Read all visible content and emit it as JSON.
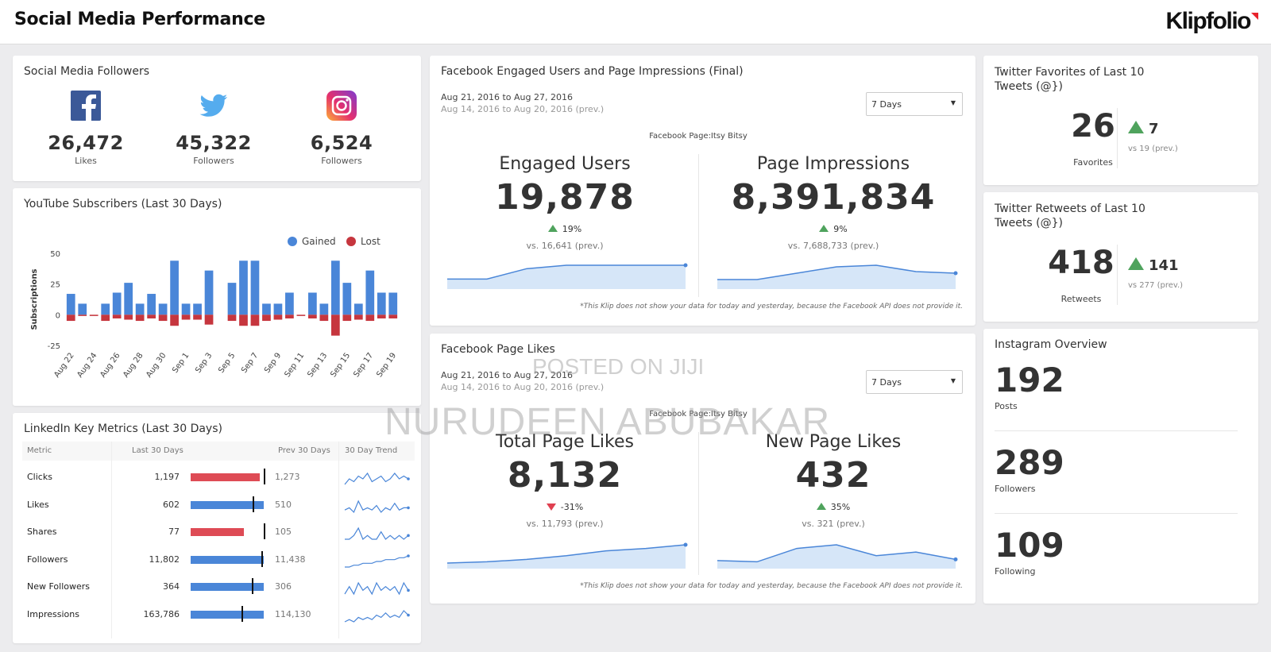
{
  "header": {
    "title": "Social Media Performance",
    "logo_text": "Klipfolio"
  },
  "followers": {
    "title": "Social Media Followers",
    "items": [
      {
        "icon": "facebook-icon",
        "value": "26,472",
        "label": "Likes",
        "color": "#3b5998"
      },
      {
        "icon": "twitter-icon",
        "value": "45,322",
        "label": "Followers",
        "color": "#55acee"
      },
      {
        "icon": "instagram-icon",
        "value": "6,524",
        "label": "Followers",
        "color": "#d6249f"
      }
    ]
  },
  "youtube": {
    "title": "YouTube Subscribers (Last 30 Days)",
    "legend_gained": "Gained",
    "legend_lost": "Lost",
    "colors": {
      "gained": "#4a86d8",
      "lost": "#c6363e"
    }
  },
  "chart_data": {
    "type": "bar",
    "title": "YouTube Subscribers (Last 30 Days)",
    "xlabel": "",
    "ylabel": "Subscriptions",
    "ylim": [
      -25,
      50
    ],
    "yticks": [
      "50",
      "25",
      "0",
      "-25"
    ],
    "tick_labels": [
      "Aug 22",
      "Aug 24",
      "Aug 26",
      "Aug 28",
      "Aug 30",
      "Sep 1",
      "Sep 3",
      "Sep 5",
      "Sep 7",
      "Sep 9",
      "Sep 11",
      "Sep 13",
      "Sep 15",
      "Sep 17",
      "Sep 19"
    ],
    "categories": [
      "Aug 22",
      "Aug 23",
      "Aug 24",
      "Aug 25",
      "Aug 26",
      "Aug 27",
      "Aug 28",
      "Aug 29",
      "Aug 30",
      "Aug 31",
      "Sep 1",
      "Sep 2",
      "Sep 3",
      "Sep 4",
      "Sep 5",
      "Sep 6",
      "Sep 7",
      "Sep 8",
      "Sep 9",
      "Sep 10",
      "Sep 11",
      "Sep 12",
      "Sep 13",
      "Sep 14",
      "Sep 15",
      "Sep 16",
      "Sep 17",
      "Sep 18",
      "Sep 19"
    ],
    "series": [
      {
        "name": "Gained",
        "values": [
          17,
          9,
          0,
          9,
          18,
          26,
          9,
          17,
          9,
          44,
          9,
          9,
          36,
          0,
          26,
          44,
          44,
          9,
          9,
          18,
          0,
          18,
          9,
          44,
          26,
          9,
          36,
          18,
          18
        ]
      },
      {
        "name": "Lost",
        "values": [
          -5,
          -1,
          -1,
          -5,
          -3,
          -4,
          -5,
          -3,
          -5,
          -9,
          -4,
          -4,
          -8,
          0,
          -5,
          -9,
          -9,
          -5,
          -4,
          -3,
          -1,
          -3,
          -5,
          -17,
          -5,
          -4,
          -5,
          -3,
          -3
        ]
      }
    ],
    "legend": "top-right",
    "grid": false
  },
  "linkedin": {
    "title": "LinkedIn Key Metrics (Last 30 Days)",
    "headers": {
      "metric": "Metric",
      "last": "Last 30 Days",
      "prev": "Prev 30 Days",
      "trend": "30 Day Trend"
    },
    "rows": [
      {
        "metric": "Clicks",
        "last": "1,197",
        "prev": "1,273",
        "last_value": 1197,
        "prev_value": 1273,
        "color": "#de4b55",
        "trend": [
          4,
          6,
          5,
          7,
          6,
          8,
          5,
          6,
          7,
          5,
          6,
          8,
          6,
          7,
          6
        ]
      },
      {
        "metric": "Likes",
        "last": "602",
        "prev": "510",
        "last_value": 602,
        "prev_value": 510,
        "color": "#4a86d8",
        "trend": [
          5,
          6,
          4,
          9,
          5,
          6,
          5,
          7,
          4,
          6,
          5,
          8,
          5,
          6,
          6
        ]
      },
      {
        "metric": "Shares",
        "last": "77",
        "prev": "105",
        "last_value": 77,
        "prev_value": 105,
        "color": "#de4b55",
        "trend": [
          5,
          5,
          6,
          8,
          5,
          6,
          5,
          5,
          7,
          5,
          6,
          5,
          6,
          5,
          6
        ]
      },
      {
        "metric": "Followers",
        "last": "11,802",
        "prev": "11,438",
        "last_value": 11802,
        "prev_value": 11438,
        "color": "#4a86d8",
        "trend": [
          3,
          3,
          4,
          4,
          5,
          5,
          5,
          6,
          6,
          7,
          7,
          7,
          8,
          8,
          9
        ]
      },
      {
        "metric": "New Followers",
        "last": "364",
        "prev": "306",
        "last_value": 364,
        "prev_value": 306,
        "color": "#4a86d8",
        "trend": [
          5,
          7,
          5,
          8,
          6,
          7,
          5,
          8,
          6,
          7,
          6,
          7,
          5,
          8,
          6
        ]
      },
      {
        "metric": "Impressions",
        "last": "163,786",
        "prev": "114,130",
        "last_value": 163786,
        "prev_value": 114130,
        "color": "#4a86d8",
        "trend": [
          4,
          5,
          4,
          6,
          5,
          6,
          5,
          7,
          6,
          8,
          6,
          7,
          6,
          9,
          7
        ]
      }
    ]
  },
  "fb_engaged": {
    "title": "Facebook Engaged Users and Page Impressions (Final)",
    "date": "Aug 21, 2016 to Aug 27, 2016",
    "date_prev": "Aug 14, 2016 to Aug 20, 2016 (prev.)",
    "select": "7 Days",
    "page": "Facebook Page:Itsy Bitsy",
    "left": {
      "label": "Engaged Users",
      "value": "19,878",
      "change": "19%",
      "prev": "vs. 16,641 (prev.)",
      "spark": [
        2,
        2,
        5,
        6,
        6,
        6,
        6
      ]
    },
    "right": {
      "label": "Page Impressions",
      "value": "8,391,834",
      "change": "9%",
      "prev": "vs. 7,688,733 (prev.)",
      "spark": [
        2,
        2,
        4,
        6,
        6.5,
        4.5,
        4
      ]
    },
    "footnote": "*This Klip does not show your data for today and yesterday, because the Facebook API does not provide it."
  },
  "fb_likes": {
    "title": "Facebook Page Likes",
    "date": "Aug 21, 2016 to Aug 27, 2016",
    "date_prev": "Aug 14, 2016 to Aug 20, 2016 (prev.)",
    "select": "7 Days",
    "page": "Facebook Page:Itsy Bitsy",
    "left": {
      "label": "Total Page Likes",
      "value": "8,132",
      "change": "-31%",
      "prev": "vs. 11,793 (prev.)",
      "spark": [
        1,
        1.5,
        2.5,
        4,
        6,
        7,
        8.5
      ]
    },
    "right": {
      "label": "New Page Likes",
      "value": "432",
      "change": "35%",
      "prev": "vs. 321 (prev.)",
      "spark": [
        2,
        1.5,
        7,
        8.5,
        4,
        5.5,
        2.5
      ]
    },
    "footnote": "*This Klip does not show your data for today and yesterday, because the Facebook API does not provide it."
  },
  "tw_favorites": {
    "title": "Twitter Favorites of Last 10 Tweets (@})",
    "value": "26",
    "label": "Favorites",
    "delta": "7",
    "prev": "vs 19 (prev.)"
  },
  "tw_retweets": {
    "title": "Twitter Retweets of Last 10 Tweets (@})",
    "value": "418",
    "label": "Retweets",
    "delta": "141",
    "prev": "vs 277 (prev.)"
  },
  "instagram": {
    "title": "Instagram Overview",
    "items": [
      {
        "value": "192",
        "label": "Posts"
      },
      {
        "value": "289",
        "label": "Followers"
      },
      {
        "value": "109",
        "label": "Following"
      }
    ]
  },
  "watermark": {
    "line1": "POSTED ON JIJI",
    "line2": "NURUDEEN ABUBAKAR"
  }
}
